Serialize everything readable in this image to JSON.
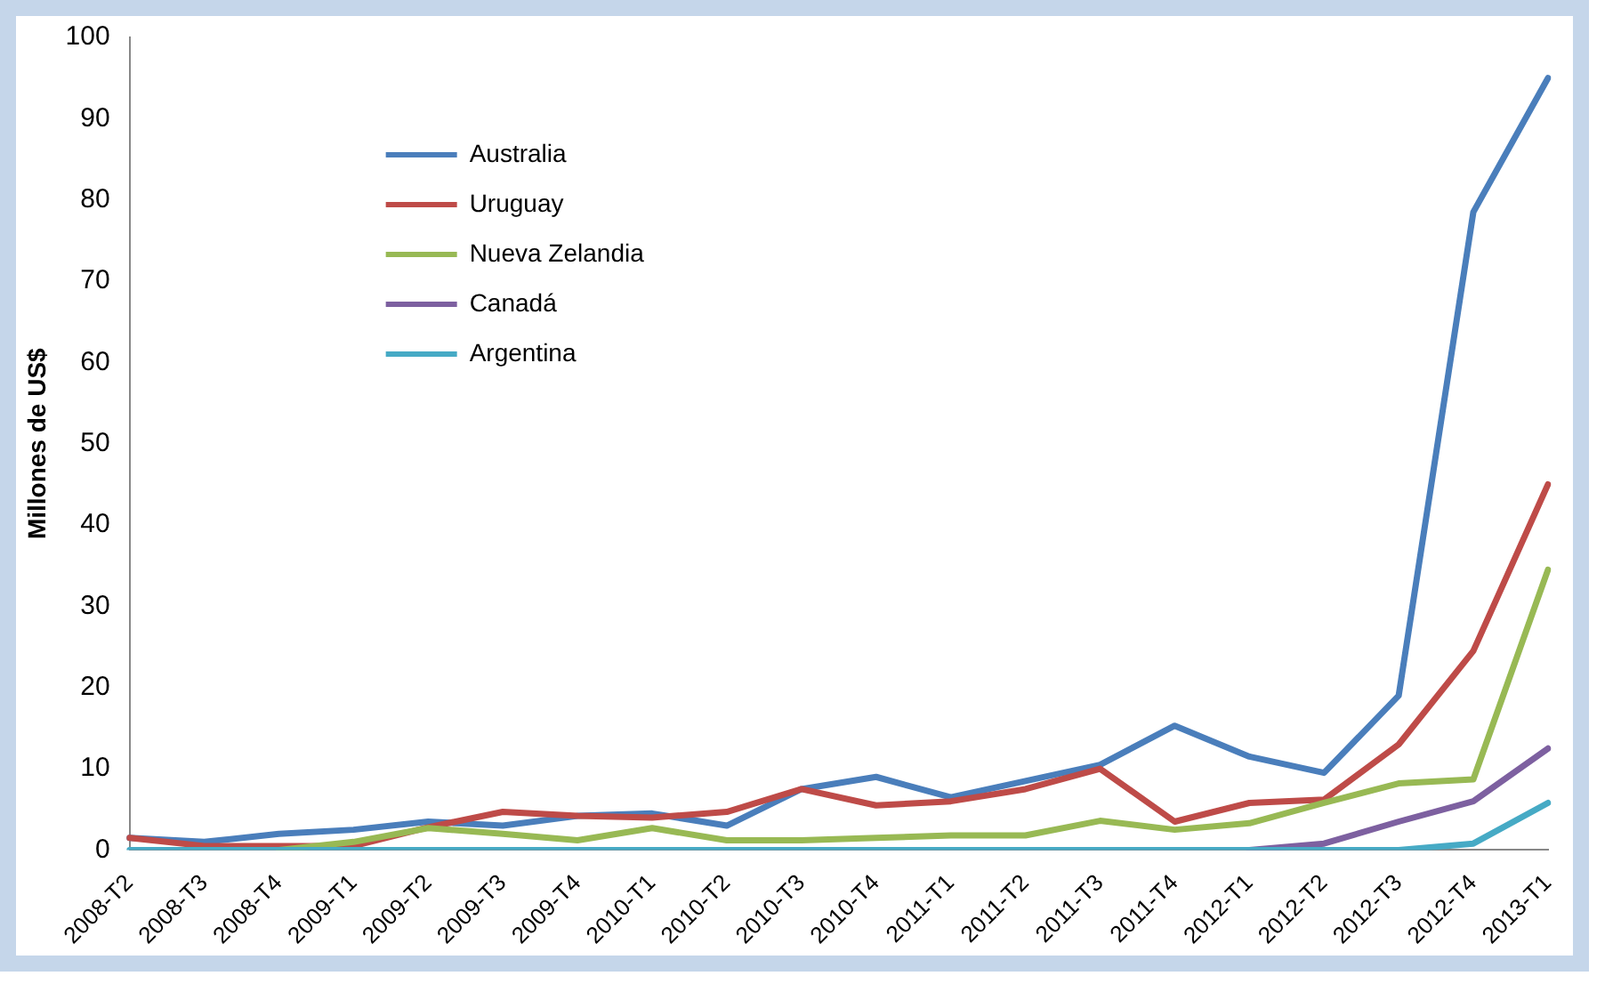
{
  "chart_data": {
    "type": "line",
    "ylabel": "Millones de US$",
    "categories": [
      "2008-T2",
      "2008-T3",
      "2008-T4",
      "2009-T1",
      "2009-T2",
      "2009-T3",
      "2009-T4",
      "2010-T1",
      "2010-T2",
      "2010-T3",
      "2010-T4",
      "2011-T1",
      "2011-T2",
      "2011-T3",
      "2011-T4",
      "2012-T1",
      "2012-T2",
      "2012-T3",
      "2012-T4",
      "2013-T1"
    ],
    "series": [
      {
        "name": "Australia",
        "color": "#4a7ebb",
        "values": [
          1.5,
          1,
          2,
          2.5,
          3.5,
          3,
          4.2,
          4.5,
          3,
          7.5,
          9,
          6.5,
          8.5,
          10.5,
          15.3,
          11.5,
          9.5,
          19,
          78.5,
          95
        ]
      },
      {
        "name": "Uruguay",
        "color": "#be4b48",
        "values": [
          1.5,
          0.5,
          0.5,
          0.5,
          2.8,
          4.7,
          4.2,
          4,
          4.7,
          7.5,
          5.5,
          6,
          7.5,
          10,
          3.5,
          5.8,
          6.2,
          13,
          24.5,
          45
        ]
      },
      {
        "name": "Nueva Zelandia",
        "color": "#98b954",
        "values": [
          null,
          null,
          0,
          1,
          2.7,
          2,
          1.2,
          2.7,
          1.2,
          1.2,
          1.5,
          1.8,
          1.8,
          3.6,
          2.5,
          3.3,
          5.8,
          8.2,
          8.7,
          34.5
        ]
      },
      {
        "name": "Canadá",
        "color": "#7d60a0",
        "values": [
          null,
          null,
          null,
          null,
          null,
          null,
          null,
          null,
          null,
          null,
          null,
          null,
          null,
          null,
          null,
          0,
          0.8,
          3.5,
          6,
          12.5
        ]
      },
      {
        "name": "Argentina",
        "color": "#46aac5",
        "values": [
          0,
          0,
          0,
          0,
          0,
          0,
          0,
          0,
          0,
          0,
          0,
          0,
          0,
          0,
          0,
          0,
          0,
          0,
          0.8,
          5.8
        ]
      }
    ],
    "ylim": [
      0,
      100
    ],
    "yticks": [
      0,
      10,
      20,
      30,
      40,
      50,
      60,
      70,
      80,
      90,
      100
    ],
    "grid": false,
    "legend": "top left",
    "marker": "none",
    "line_style": "solid"
  }
}
